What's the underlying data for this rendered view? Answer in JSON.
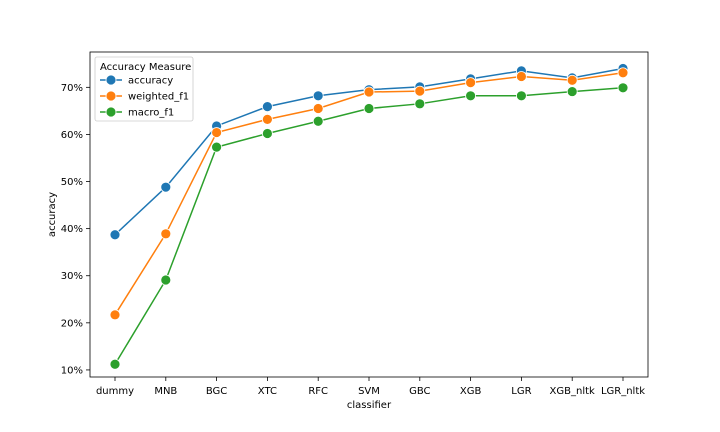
{
  "chart_data": {
    "type": "line",
    "xlabel": "classifier",
    "ylabel": "accuracy",
    "categories": [
      "dummy",
      "MNB",
      "BGC",
      "XTC",
      "RFC",
      "SVM",
      "GBC",
      "XGB",
      "LGR",
      "XGB_nltk",
      "LGR_nltk"
    ],
    "ylim": [
      0.085,
      0.775
    ],
    "yticks": [
      0.1,
      0.2,
      0.3,
      0.4,
      0.5,
      0.6,
      0.7
    ],
    "ytick_labels": [
      "10%",
      "20%",
      "30%",
      "40%",
      "50%",
      "60%",
      "70%"
    ],
    "grid": false,
    "legend": {
      "title": "Accuracy Measure",
      "placement": "upper-left"
    },
    "series": [
      {
        "name": "accuracy",
        "color": "#1f77b4",
        "values": [
          0.387,
          0.488,
          0.618,
          0.659,
          0.682,
          0.695,
          0.701,
          0.718,
          0.735,
          0.72,
          0.74
        ]
      },
      {
        "name": "weighted_f1",
        "color": "#ff7f0e",
        "values": [
          0.217,
          0.389,
          0.604,
          0.632,
          0.655,
          0.69,
          0.692,
          0.71,
          0.723,
          0.715,
          0.731
        ]
      },
      {
        "name": "macro_f1",
        "color": "#2ca02c",
        "values": [
          0.112,
          0.291,
          0.573,
          0.602,
          0.628,
          0.655,
          0.665,
          0.682,
          0.682,
          0.691,
          0.699
        ]
      }
    ]
  }
}
